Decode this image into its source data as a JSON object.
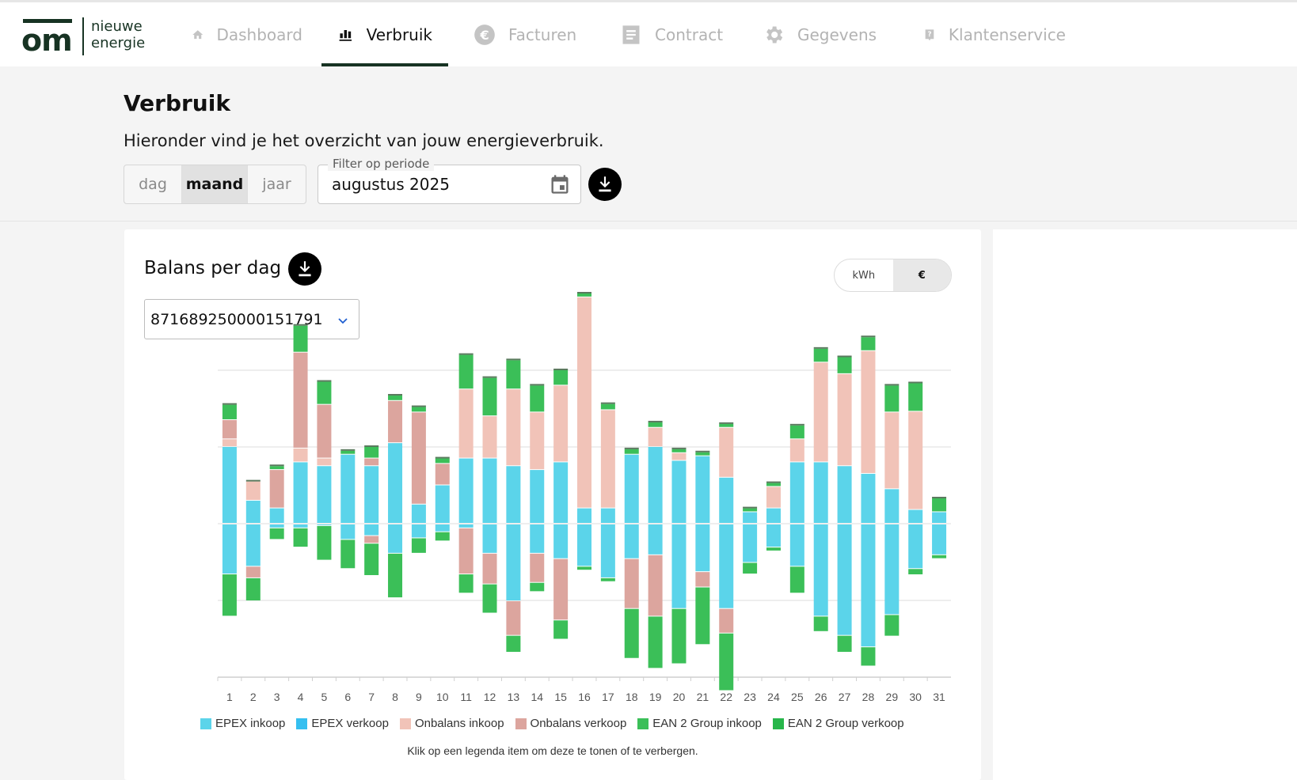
{
  "logo": {
    "brand": "om",
    "line1": "nieuwe",
    "line2": "energie"
  },
  "nav": [
    {
      "label": "Dashboard",
      "icon": "home-icon",
      "active": false
    },
    {
      "label": "Verbruik",
      "icon": "bar-chart-icon",
      "active": true
    },
    {
      "label": "Facturen",
      "icon": "euro-icon",
      "active": false
    },
    {
      "label": "Contract",
      "icon": "document-icon",
      "active": false
    },
    {
      "label": "Gegevens",
      "icon": "gear-icon",
      "active": false
    },
    {
      "label": "Klantenservice",
      "icon": "help-icon",
      "active": false
    }
  ],
  "page": {
    "title": "Verbruik",
    "subtitle": "Hieronder vind je het overzicht van jouw energieverbruik.",
    "granularity": [
      "dag",
      "maand",
      "jaar"
    ],
    "granularity_selected": "maand",
    "period_label": "Filter op periode",
    "period_value": "augustus 2025"
  },
  "card": {
    "title": "Balans per dag",
    "unit_options": [
      "kWh",
      "€"
    ],
    "unit_selected": "€",
    "ean_value": "871689250000151791",
    "legend_hint": "Klik op een legenda item om deze te tonen of te verbergen."
  },
  "colors": {
    "epex_inkoop": "#5bd4ea",
    "epex_verkoop": "#35bff0",
    "onbalans_inkoop": "#f1c3b8",
    "onbalans_verkoop": "#dca59e",
    "ean2_inkoop": "#3bbf58",
    "ean2_verkoop": "#27b64a",
    "active_nav": "#173323"
  },
  "chart_data": {
    "type": "bar",
    "stacked": true,
    "title": "Balans per dag",
    "xlabel": "",
    "ylabel": "",
    "ylim": [
      -2,
      2
    ],
    "categories": [
      "1",
      "2",
      "3",
      "4",
      "5",
      "6",
      "7",
      "8",
      "9",
      "10",
      "11",
      "12",
      "13",
      "14",
      "15",
      "16",
      "17",
      "18",
      "19",
      "20",
      "21",
      "22",
      "23",
      "24",
      "25",
      "26",
      "27",
      "28",
      "29",
      "30",
      "31"
    ],
    "series": [
      {
        "name": "EPEX inkoop",
        "pos": [
          1.0,
          0.3,
          0.2,
          0.8,
          0.75,
          0.9,
          0.75,
          1.05,
          0.25,
          0.5,
          0.85,
          0.85,
          0.75,
          0.7,
          0.8,
          0.2,
          0.2,
          0.9,
          1.0,
          0.82,
          0.88,
          0.6,
          0.15,
          0.2,
          0.8,
          0.8,
          0.75,
          0.65,
          0.45,
          0.18,
          0.15
        ],
        "neg": [
          -0.65,
          -0.55,
          -0.05,
          -0.05,
          -0.02,
          -0.2,
          -0.15,
          -0.38,
          -0.18,
          -0.1,
          -0.05,
          -0.38,
          -1.0,
          -0.38,
          -0.45,
          -0.55,
          -0.7,
          -0.45,
          -0.4,
          -1.1,
          -0.62,
          -1.1,
          -0.5,
          -0.3,
          -0.55,
          -1.2,
          -1.45,
          -1.6,
          -1.18,
          -0.58,
          -0.4
        ]
      },
      {
        "name": "EPEX verkoop",
        "pos": [
          0,
          0,
          0,
          0,
          0,
          0,
          0,
          0,
          0,
          0,
          0,
          0,
          0,
          0,
          0,
          0,
          0,
          0,
          0,
          0,
          0,
          0,
          0,
          0,
          0,
          0,
          0,
          0,
          0,
          0,
          0
        ],
        "neg": [
          0,
          0,
          0,
          0,
          0,
          0,
          0,
          0,
          0,
          0,
          0,
          0,
          0,
          0,
          0,
          0,
          0,
          0,
          0,
          0,
          0,
          0,
          0,
          0,
          0,
          0,
          0,
          0,
          0,
          0,
          0
        ]
      },
      {
        "name": "Onbalans inkoop",
        "pos": [
          0.1,
          0.25,
          0.0,
          0.18,
          0.1,
          0.0,
          0.0,
          0.0,
          0.0,
          0.0,
          0.9,
          0.55,
          1.0,
          0.75,
          1.0,
          2.75,
          1.28,
          0.0,
          0.25,
          0.1,
          0.0,
          0.65,
          0.0,
          0.28,
          0.3,
          1.3,
          1.2,
          1.6,
          1.0,
          1.28,
          0.0
        ],
        "neg": [
          0,
          0,
          0,
          0,
          0,
          0,
          0,
          0,
          0,
          0,
          0,
          0,
          0,
          0,
          0,
          0,
          0,
          0,
          0,
          0,
          0,
          0,
          0,
          0,
          0,
          0,
          0,
          0,
          0,
          0,
          0
        ]
      },
      {
        "name": "Onbalans verkoop",
        "pos": [
          0.25,
          0.0,
          0.5,
          1.25,
          0.7,
          0.0,
          0.1,
          0.55,
          1.2,
          0.28,
          0.0,
          0.0,
          0.0,
          0.0,
          0.0,
          0.0,
          0.0,
          0.0,
          0.0,
          0.0,
          0.0,
          0.0,
          0.0,
          0.0,
          0.0,
          0.0,
          0.0,
          0.0,
          0.0,
          0.0,
          0.0
        ],
        "neg": [
          0.0,
          -0.15,
          0.0,
          0.0,
          0.0,
          0.0,
          -0.1,
          0.0,
          0.0,
          0.0,
          -0.6,
          -0.4,
          -0.45,
          -0.38,
          -0.8,
          0.0,
          0.0,
          -0.65,
          -0.8,
          0.0,
          -0.2,
          -0.32,
          0.0,
          0.0,
          0.0,
          0.0,
          0.0,
          0.0,
          0.0,
          0.0,
          0.0
        ]
      },
      {
        "name": "EAN 2 Group inkoop",
        "pos": [
          0.2,
          0.0,
          0.05,
          0.35,
          0.3,
          0.05,
          0.15,
          0.07,
          0.07,
          0.07,
          0.45,
          0.5,
          0.38,
          0.35,
          0.2,
          0.05,
          0.08,
          0.07,
          0.07,
          0.05,
          0.05,
          0.05,
          0.05,
          0.05,
          0.18,
          0.18,
          0.22,
          0.18,
          0.35,
          0.37,
          0.18
        ],
        "neg": [
          -0.55,
          -0.3,
          -0.15,
          -0.25,
          -0.45,
          -0.38,
          -0.42,
          -0.58,
          -0.2,
          -0.12,
          -0.25,
          -0.38,
          -0.22,
          -0.12,
          -0.25,
          -0.05,
          -0.05,
          -0.65,
          -0.68,
          -0.72,
          -0.75,
          -0.75,
          -0.15,
          -0.05,
          -0.35,
          -0.2,
          -0.22,
          -0.25,
          -0.28,
          -0.08,
          -0.05
        ]
      },
      {
        "name": "EAN 2 Group verkoop",
        "pos": [
          0,
          0,
          0,
          0,
          0,
          0,
          0,
          0,
          0,
          0,
          0,
          0,
          0,
          0,
          0,
          0,
          0,
          0,
          0,
          0,
          0,
          0,
          0,
          0,
          0,
          0,
          0,
          0,
          0,
          0,
          0
        ],
        "neg": [
          0,
          0,
          0,
          0,
          0,
          0,
          0,
          0,
          0,
          0,
          0,
          0,
          0,
          0,
          0,
          0,
          0,
          0,
          0,
          0,
          0,
          0,
          0,
          0,
          0,
          0,
          0,
          0,
          0,
          0,
          0
        ]
      }
    ],
    "grid": true,
    "legend_position": "bottom"
  }
}
